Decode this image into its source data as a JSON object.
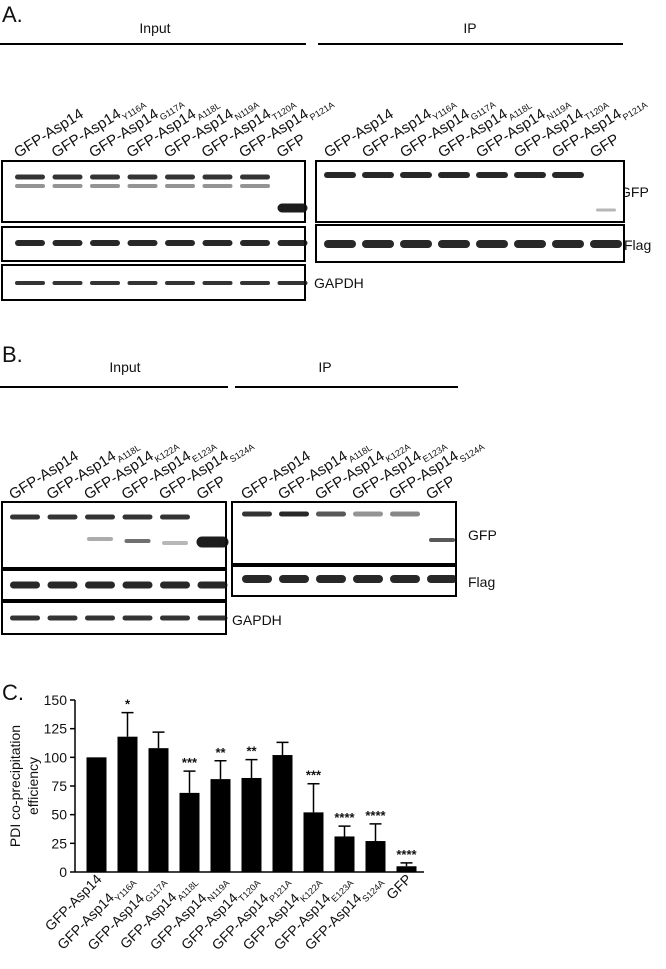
{
  "panel_a": {
    "label": "A.",
    "input_label": "Input",
    "ip_label": "IP",
    "input_lanes": [
      {
        "text": "GFP-Asp14"
      },
      {
        "text": "GFP-Asp14",
        "sub": "Y116A"
      },
      {
        "text": "GFP-Asp14",
        "sub": "G117A"
      },
      {
        "text": "GFP-Asp14",
        "sub": "A118L"
      },
      {
        "text": "GFP-Asp14",
        "sub": "N119A"
      },
      {
        "text": "GFP-Asp14",
        "sub": "T120A"
      },
      {
        "text": "GFP-Asp14",
        "sub": "P121A"
      },
      {
        "text": "GFP"
      }
    ],
    "ip_lanes": [
      {
        "text": "GFP-Asp14"
      },
      {
        "text": "GFP-Asp14",
        "sub": "Y116A"
      },
      {
        "text": "GFP-Asp14",
        "sub": "G117A"
      },
      {
        "text": "GFP-Asp14",
        "sub": "A118L"
      },
      {
        "text": "GFP-Asp14",
        "sub": "N119A"
      },
      {
        "text": "GFP-Asp14",
        "sub": "T120A"
      },
      {
        "text": "GFP-Asp14",
        "sub": "P121A"
      },
      {
        "text": "GFP"
      }
    ],
    "blot_labels": [
      "GFP",
      "Flag",
      "GAPDH"
    ]
  },
  "panel_b": {
    "label": "B.",
    "input_label": "Input",
    "ip_label": "IP",
    "input_lanes": [
      {
        "text": "GFP-Asp14"
      },
      {
        "text": "GFP-Asp14",
        "sub": "A118L"
      },
      {
        "text": "GFP-Asp14",
        "sub": "K122A"
      },
      {
        "text": "GFP-Asp14",
        "sub": "E123A"
      },
      {
        "text": "GFP-Asp14",
        "sub": "S124A"
      },
      {
        "text": "GFP"
      }
    ],
    "ip_lanes": [
      {
        "text": "GFP-Asp14"
      },
      {
        "text": "GFP-Asp14",
        "sub": "A118L"
      },
      {
        "text": "GFP-Asp14",
        "sub": "K122A"
      },
      {
        "text": "GFP-Asp14",
        "sub": "E123A"
      },
      {
        "text": "GFP-Asp14",
        "sub": "S124A"
      },
      {
        "text": "GFP"
      }
    ],
    "blot_labels": [
      "GFP",
      "Flag",
      "GAPDH"
    ]
  },
  "chart_data": {
    "type": "bar",
    "label": "C.",
    "ylabel": [
      "PDI  co-precipitation",
      "efficiency"
    ],
    "categories": [
      {
        "text": "GFP-Asp14"
      },
      {
        "text": "GFP-Asp14",
        "sub": "Y116A"
      },
      {
        "text": "GFP-Asp14",
        "sub": "G117A"
      },
      {
        "text": "GFP-Asp14",
        "sub": "A118L"
      },
      {
        "text": "GFP-Asp14",
        "sub": "N119A"
      },
      {
        "text": "GFP-Asp14",
        "sub": "T120A"
      },
      {
        "text": "GFP-Asp14",
        "sub": "P121A"
      },
      {
        "text": "GFP-Asp14",
        "sub": "K122A"
      },
      {
        "text": "GFP-Asp14",
        "sub": "E123A"
      },
      {
        "text": "GFP-Asp14",
        "sub": "S124A"
      },
      {
        "text": "GFP"
      }
    ],
    "values": [
      100,
      118,
      108,
      69,
      81,
      82,
      102,
      52,
      31,
      27,
      5
    ],
    "errors": [
      null,
      21,
      14,
      19,
      16,
      16,
      11,
      25,
      9,
      15,
      3
    ],
    "annotations": [
      null,
      "*",
      null,
      "***",
      "**",
      "**",
      null,
      "***",
      "****",
      "****",
      "****"
    ],
    "color": "#000000",
    "ylim": [
      0,
      150
    ],
    "yticks": [
      0,
      25,
      50,
      75,
      100,
      125,
      150
    ]
  }
}
